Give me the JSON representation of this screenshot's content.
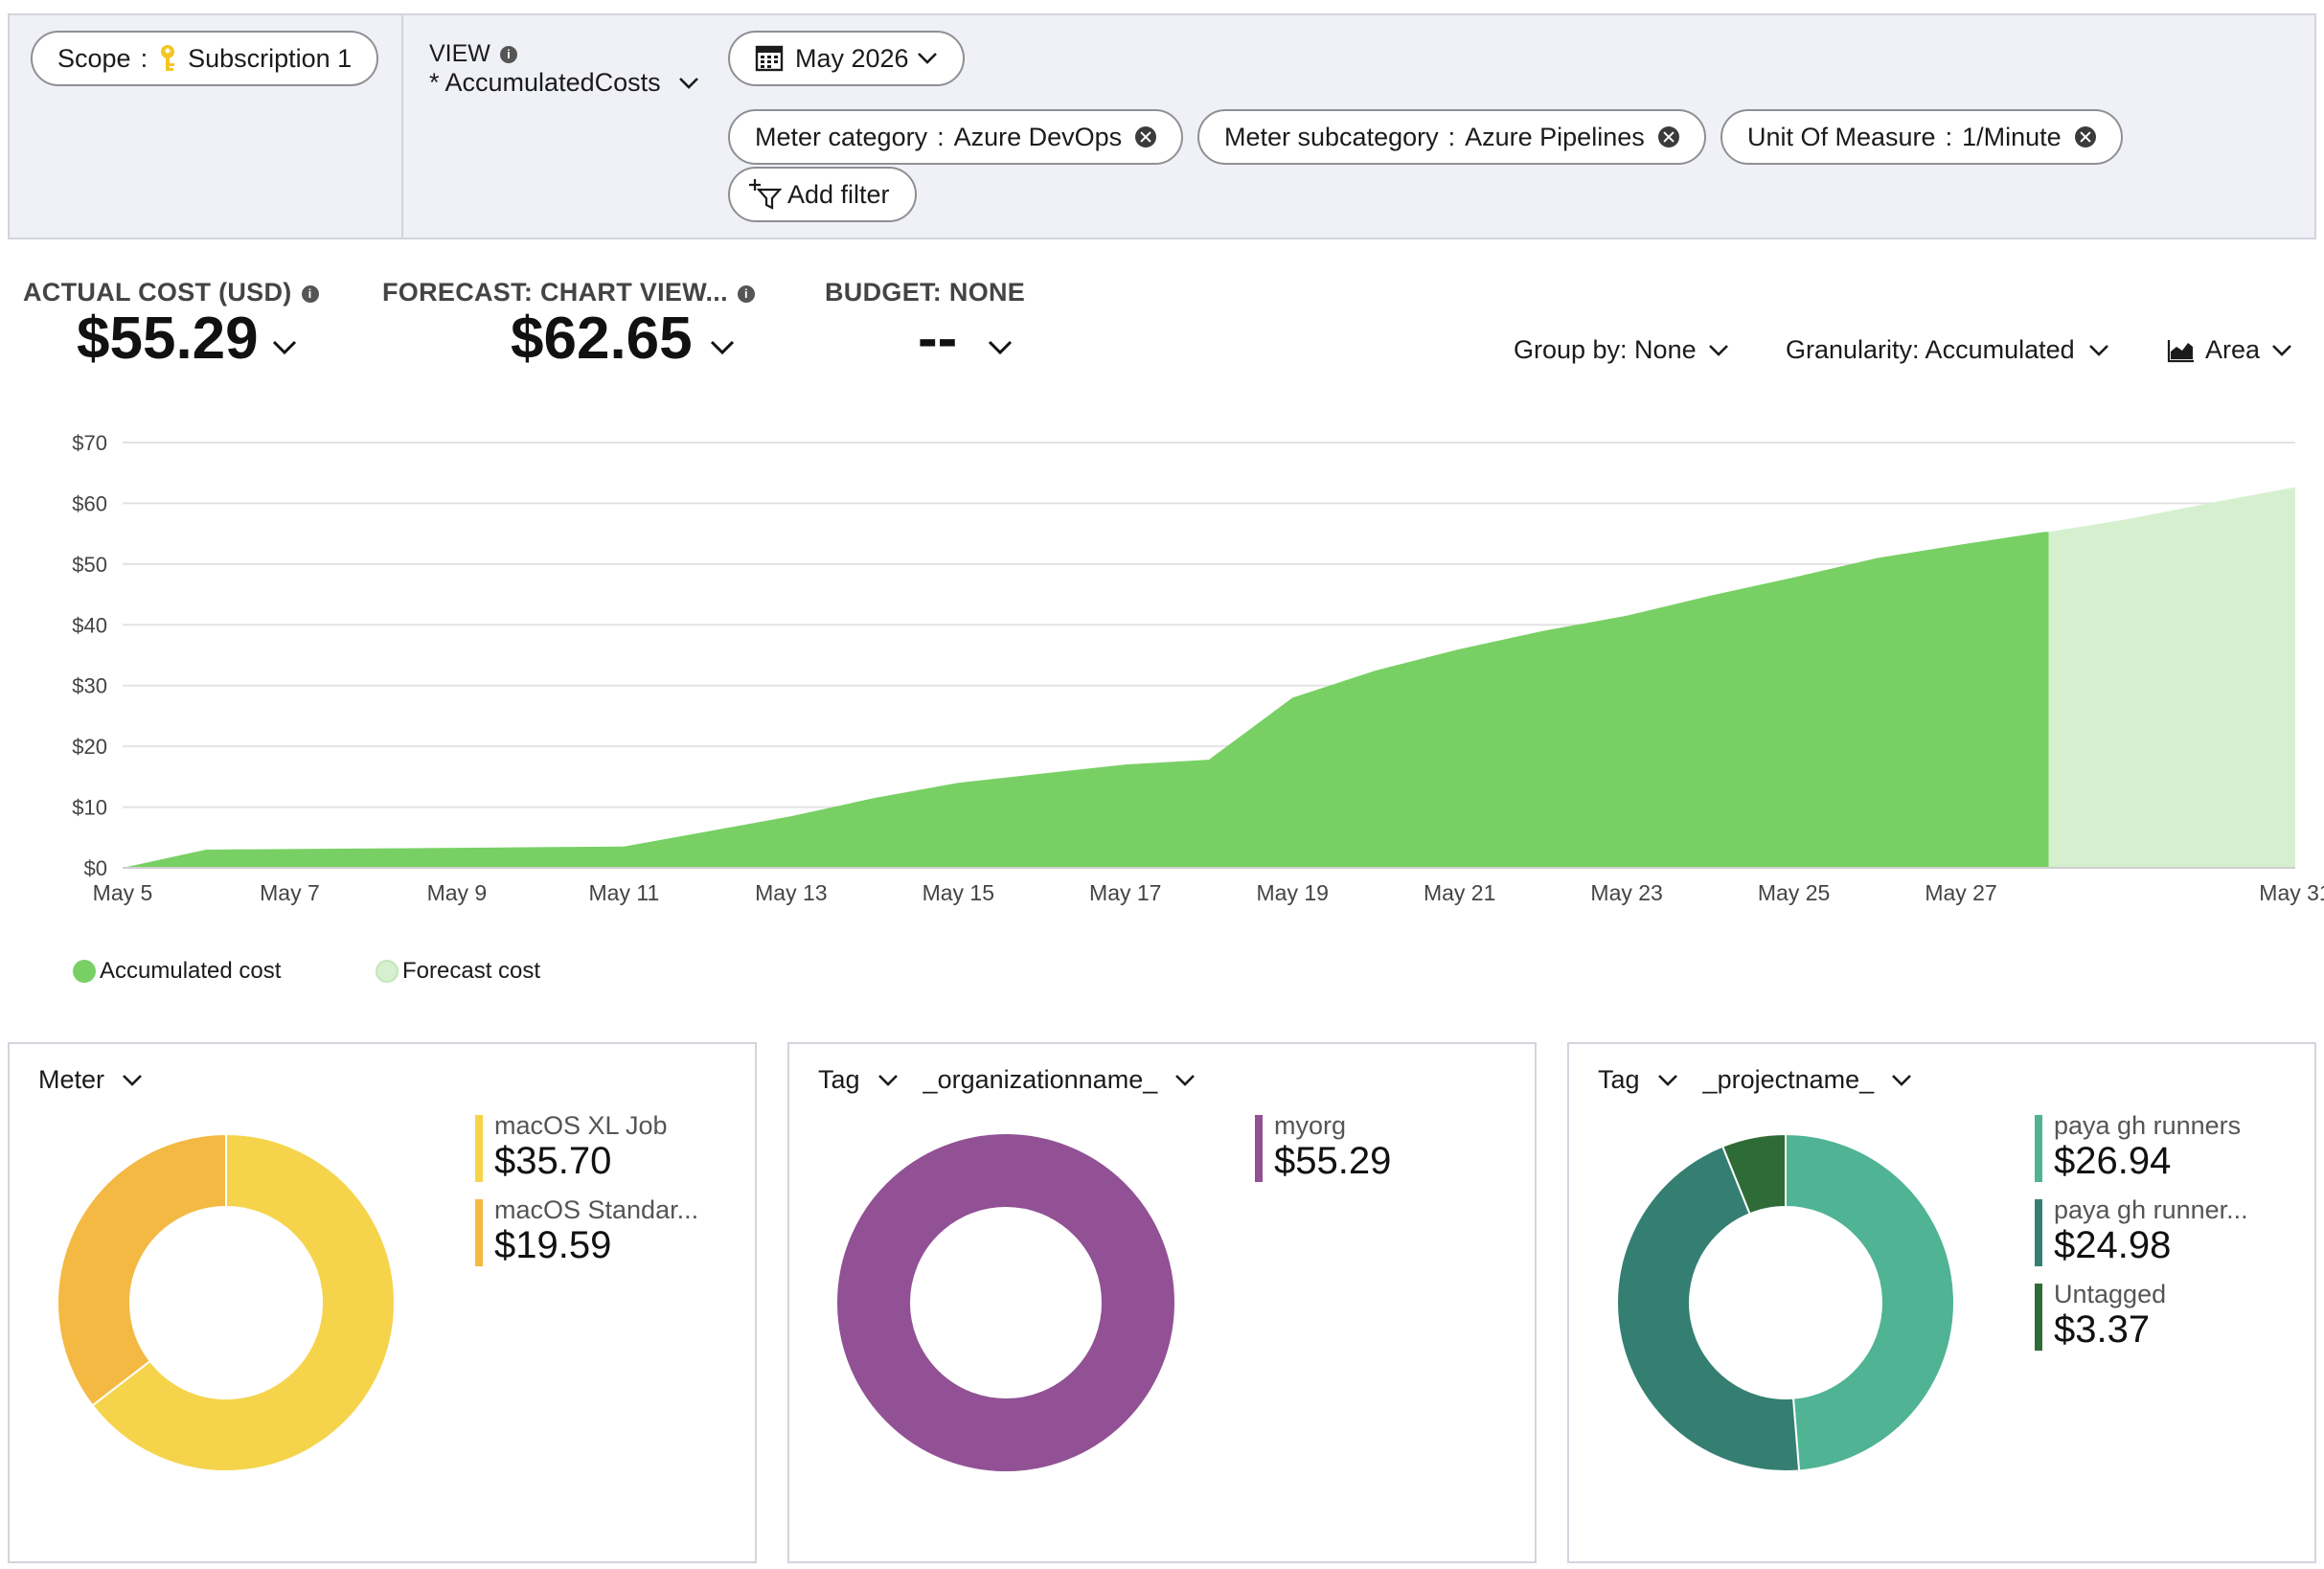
{
  "filters": {
    "scope_label": "Scope",
    "scope_value": "Subscription 1",
    "view_label": "VIEW",
    "view_name": "* AccumulatedCosts",
    "date_range": "May 2026",
    "chips": [
      {
        "key": "Meter category",
        "value": "Azure DevOps"
      },
      {
        "key": "Meter subcategory",
        "value": "Azure Pipelines"
      },
      {
        "key": "Unit Of Measure",
        "value": "1/Minute"
      }
    ],
    "add_filter": "Add filter"
  },
  "kpis": {
    "actual_label": "ACTUAL COST (USD)",
    "actual_value": "$55.29",
    "forecast_label": "FORECAST: CHART VIEW...",
    "forecast_value": "$62.65",
    "budget_label": "BUDGET: NONE",
    "budget_value": "--"
  },
  "controls": {
    "group_by": "Group by: None",
    "granularity": "Granularity: Accumulated",
    "chart_type": "Area"
  },
  "colors": {
    "accumulated": "#78d064",
    "forecast": "#d6f0cf",
    "meter_xl": "#f5d44b",
    "meter_std": "#f4b942",
    "org_myorg": "#915194",
    "proj_1": "#4fb394",
    "proj_2": "#357f72",
    "untagged": "#2f6b37"
  },
  "chart_data": {
    "type": "area",
    "title": "",
    "xlabel": "",
    "ylabel": "",
    "ylim": [
      0,
      70
    ],
    "y_ticks": [
      "$0",
      "$10",
      "$20",
      "$30",
      "$40",
      "$50",
      "$60",
      "$70"
    ],
    "y_tick_values": [
      0,
      10,
      20,
      30,
      40,
      50,
      60,
      70
    ],
    "x_tick_labels": [
      "May 5",
      "May 7",
      "May 9",
      "May 11",
      "May 13",
      "May 15",
      "May 17",
      "May 19",
      "May 21",
      "May 23",
      "May 25",
      "May 27",
      "May 31"
    ],
    "x_tick_days": [
      5,
      7,
      9,
      11,
      13,
      15,
      17,
      19,
      21,
      23,
      25,
      27,
      31
    ],
    "grid": true,
    "legend_position": "bottom-left",
    "series": [
      {
        "name": "Accumulated cost",
        "x": [
          5,
          6,
          7,
          8,
          9,
          10,
          11,
          12,
          13,
          14,
          15,
          16,
          17,
          18,
          19,
          20,
          21,
          22,
          23,
          24,
          25,
          26,
          27,
          28,
          28.05
        ],
        "values": [
          0,
          3,
          3.1,
          3.2,
          3.3,
          3.4,
          3.5,
          6,
          8.5,
          11.5,
          14,
          15.5,
          17,
          17.8,
          28,
          32.5,
          36,
          39,
          41.5,
          44.8,
          47.8,
          51,
          53.2,
          55.29,
          55.29
        ]
      },
      {
        "name": "Forecast cost",
        "x": [
          28.05,
          29,
          30,
          31
        ],
        "values": [
          55.29,
          57.4,
          60.1,
          62.65
        ]
      }
    ]
  },
  "breakdowns": [
    {
      "header": [
        "Meter"
      ],
      "items": [
        {
          "name": "macOS XL Job",
          "value": "$35.70",
          "amount": 35.7,
          "color": "#f5d44b"
        },
        {
          "name": "macOS Standar...",
          "value": "$19.59",
          "amount": 19.59,
          "color": "#f4b942"
        }
      ]
    },
    {
      "header": [
        "Tag",
        "_organizationname_"
      ],
      "items": [
        {
          "name": "myorg",
          "value": "$55.29",
          "amount": 55.29,
          "color": "#915194"
        }
      ]
    },
    {
      "header": [
        "Tag",
        "_projectname_"
      ],
      "items": [
        {
          "name": "paya gh runners",
          "value": "$26.94",
          "amount": 26.94,
          "color": "#4fb394"
        },
        {
          "name": "paya gh runner...",
          "value": "$24.98",
          "amount": 24.98,
          "color": "#357f72"
        },
        {
          "name": "Untagged",
          "value": "$3.37",
          "amount": 3.37,
          "color": "#2f6b37"
        }
      ]
    }
  ]
}
